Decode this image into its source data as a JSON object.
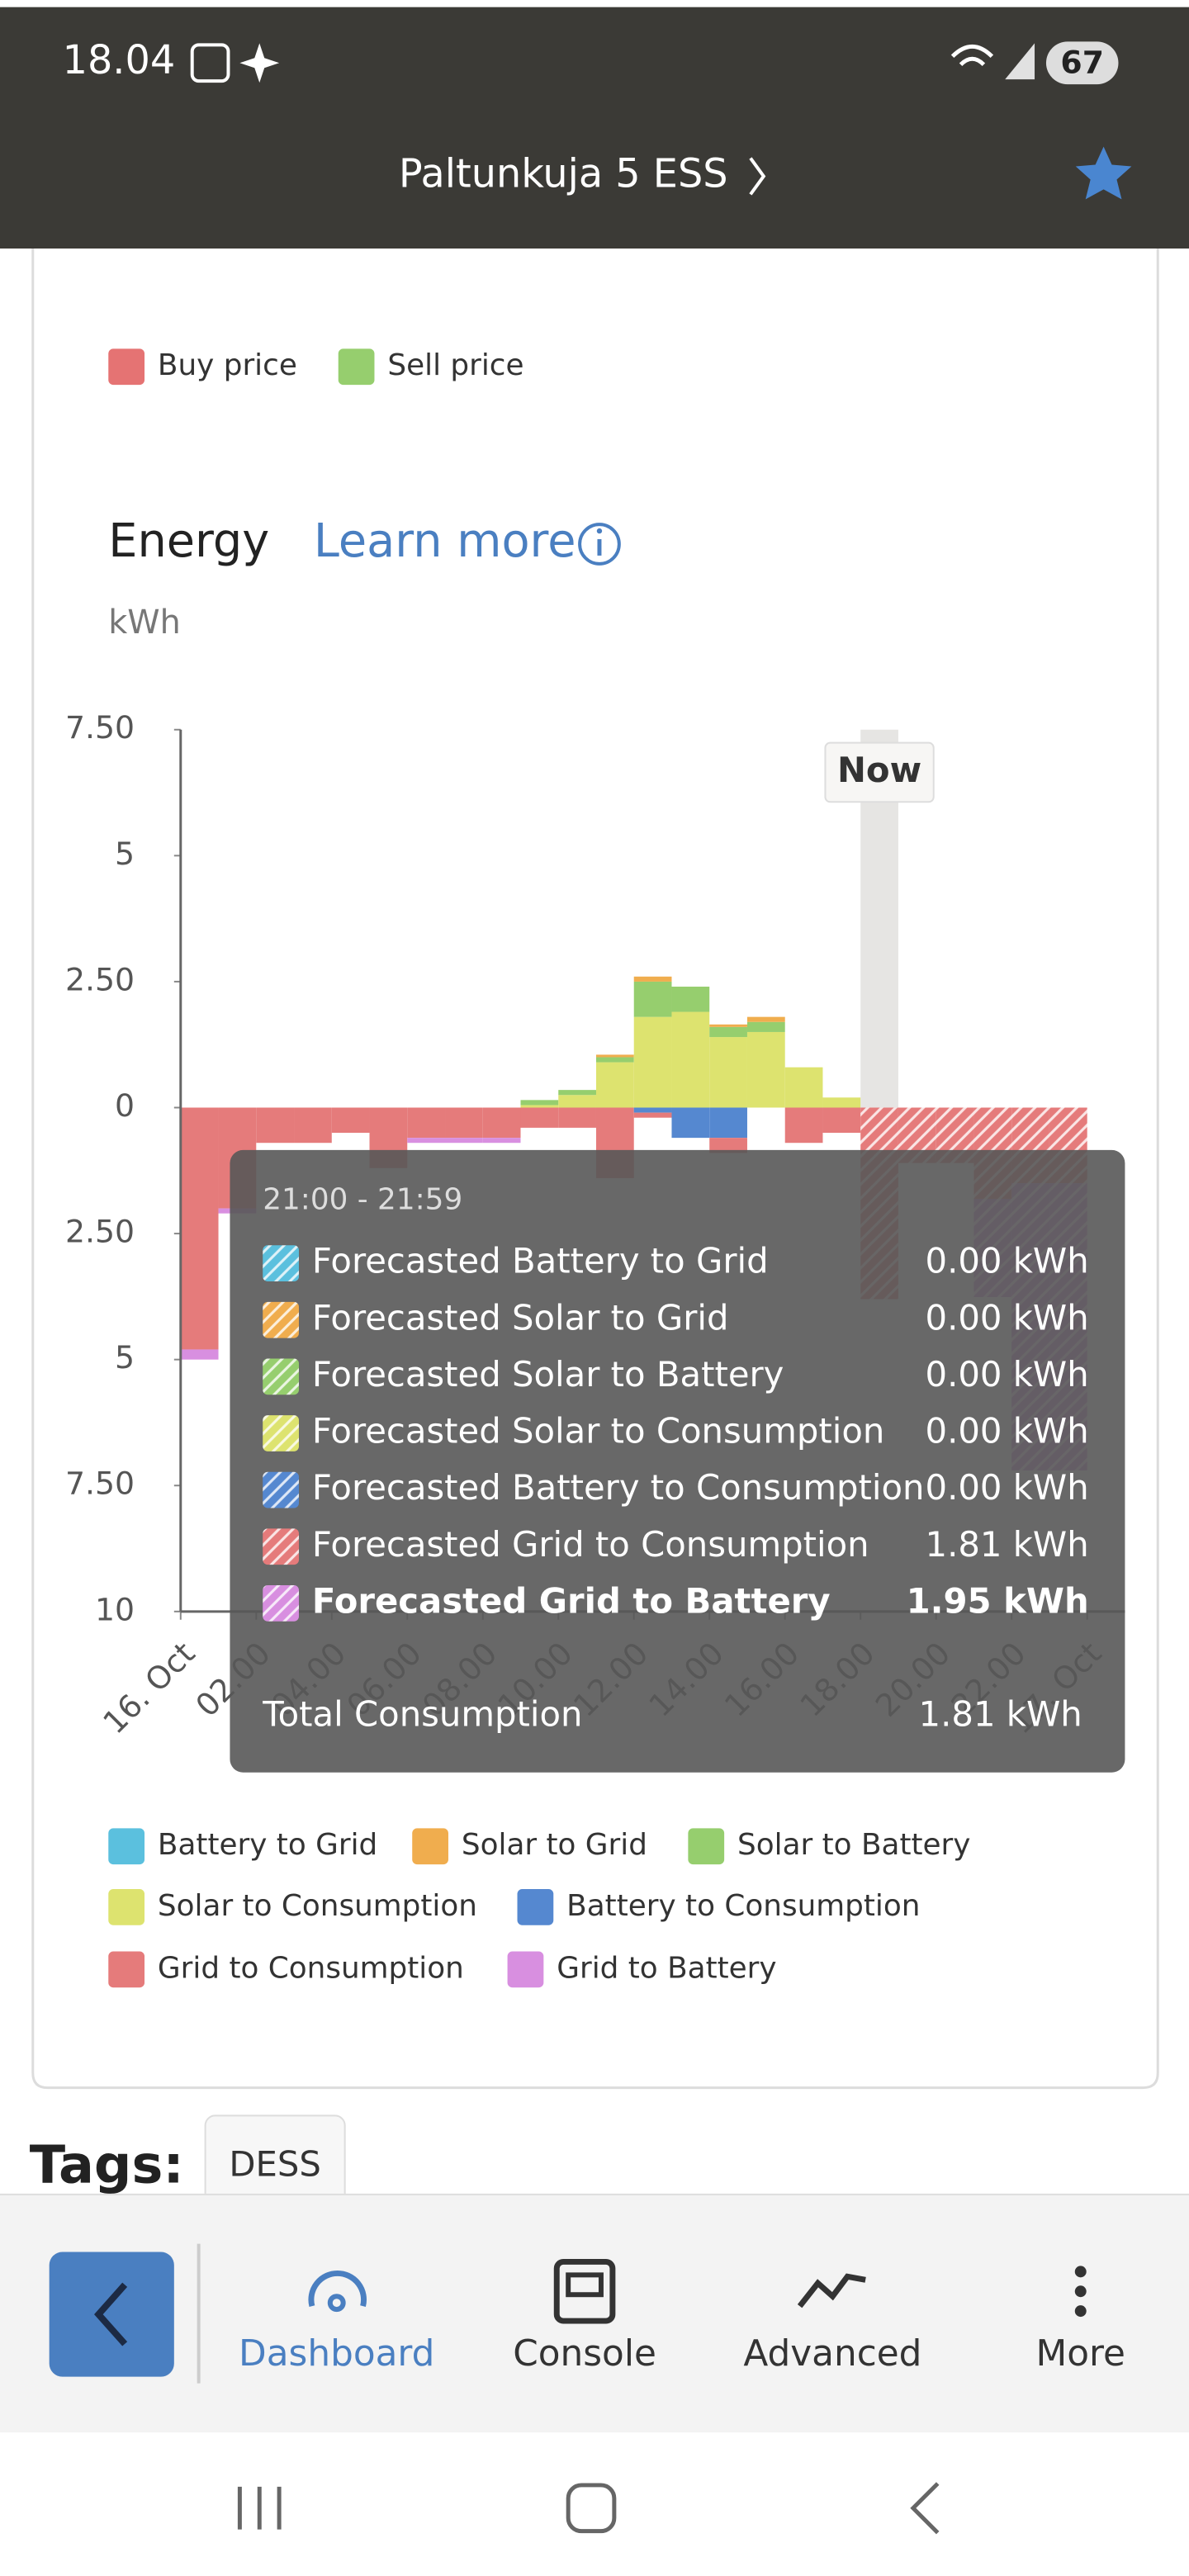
{
  "status_bar": {
    "time": "18.04",
    "battery": "67"
  },
  "header": {
    "title": "Paltunkuja 5 ESS"
  },
  "price_legend": [
    {
      "name": "Buy price",
      "color": "#e57373"
    },
    {
      "name": "Sell price",
      "color": "#96ce6e"
    }
  ],
  "learn_more": "Learn more",
  "chart_data": {
    "type": "bar",
    "stacked": true,
    "title": "Energy",
    "y_label": "kWh",
    "x": [
      0,
      1,
      2,
      3,
      4,
      5,
      6,
      7,
      8,
      9,
      10,
      11,
      12,
      13,
      14,
      15,
      16,
      17,
      18,
      19,
      20,
      21,
      22,
      23
    ],
    "xlim": [
      0,
      24
    ],
    "xticks": [
      {
        "value": 0,
        "label": "16. Oct"
      },
      {
        "value": 2,
        "label": "02.00"
      },
      {
        "value": 4,
        "label": "04.00"
      },
      {
        "value": 6,
        "label": "06.00"
      },
      {
        "value": 8,
        "label": "08.00"
      },
      {
        "value": 10,
        "label": "10.00"
      },
      {
        "value": 12,
        "label": "12.00"
      },
      {
        "value": 14,
        "label": "14.00"
      },
      {
        "value": 16,
        "label": "16.00"
      },
      {
        "value": 18,
        "label": "18.00"
      },
      {
        "value": 20,
        "label": "20.00"
      },
      {
        "value": 22,
        "label": "22.00"
      },
      {
        "value": 24,
        "label": "17. Oct"
      }
    ],
    "ylim": [
      -10,
      7.5
    ],
    "yticks": [
      {
        "value": 7.5,
        "label": "7.50"
      },
      5,
      {
        "value": 2.5,
        "label": "2.50"
      },
      0,
      {
        "value": -2.5,
        "label": "2.50"
      },
      {
        "value": -5,
        "label": "5"
      },
      {
        "value": -7.5,
        "label": "7.50"
      },
      {
        "value": -10,
        "label": "10"
      }
    ],
    "now": {
      "x": 18,
      "label": "Now"
    },
    "series": [
      {
        "name": "Battery to Grid",
        "color": "#5bc0de",
        "values": [
          0,
          0,
          0,
          0,
          0,
          0,
          0,
          0,
          0,
          0,
          0,
          0,
          0,
          0,
          0,
          0,
          0,
          0,
          0,
          0,
          0,
          0,
          0,
          0
        ]
      },
      {
        "name": "Solar to Grid",
        "color": "#f0ad4e",
        "values": [
          0,
          0,
          0,
          0,
          0,
          0,
          0,
          0,
          0,
          0,
          0,
          0.05,
          0.1,
          0,
          0.05,
          0.1,
          0,
          0,
          0,
          0,
          0,
          0,
          0,
          0
        ]
      },
      {
        "name": "Solar to Battery",
        "color": "#96ce6e",
        "values": [
          0,
          0,
          0,
          0,
          0,
          0,
          0,
          0,
          0,
          0.1,
          0.1,
          0.1,
          0.7,
          0.5,
          0.2,
          0.2,
          0,
          0,
          0,
          0,
          0,
          0,
          0,
          0
        ]
      },
      {
        "name": "Solar to Consumption",
        "color": "#dde36f",
        "values": [
          0,
          0,
          0,
          0,
          0,
          0,
          0,
          0,
          0,
          0.05,
          0.25,
          0.9,
          1.8,
          1.9,
          1.4,
          1.5,
          0.8,
          0.2,
          0,
          0,
          0,
          0,
          0,
          0
        ]
      },
      {
        "name": "Battery to Consumption",
        "color": "#5588d0",
        "values": [
          0,
          0,
          0,
          0,
          0,
          0,
          0,
          0,
          0,
          0,
          0,
          0,
          -0.1,
          -0.6,
          -0.6,
          0,
          0,
          0,
          0,
          0,
          0,
          0,
          0,
          0
        ]
      },
      {
        "name": "Grid to Consumption",
        "color": "#e57b7b",
        "values": [
          -4.8,
          -2.0,
          -0.7,
          -0.7,
          -0.5,
          -1.2,
          -0.6,
          -0.6,
          -0.6,
          -0.4,
          -0.4,
          -1.4,
          -0.1,
          0,
          -0.3,
          0,
          -0.7,
          -0.5,
          -3.8,
          -1.1,
          -1.1,
          -1.81,
          -1.5,
          -1.5
        ]
      },
      {
        "name": "Grid to Battery",
        "color": "#d88fe0",
        "values": [
          -0.2,
          -0.1,
          0,
          0,
          0,
          0,
          -0.1,
          -0.1,
          -0.1,
          0,
          0,
          0,
          0,
          0,
          0,
          0,
          0,
          0,
          0,
          0,
          0,
          -1.95,
          -5.7,
          -5.7
        ]
      }
    ]
  },
  "tooltip": {
    "time": "21:00 - 21:59",
    "rows": [
      {
        "label": "Forecasted Battery to Grid",
        "value": "0.00 kWh"
      },
      {
        "label": "Forecasted Solar to Grid",
        "value": "0.00 kWh"
      },
      {
        "label": "Forecasted Solar to Battery",
        "value": "0.00 kWh"
      },
      {
        "label": "Forecasted Solar to Consumption",
        "value": "0.00 kWh"
      },
      {
        "label": "Forecasted Battery to Consumption",
        "value": "0.00 kWh"
      },
      {
        "label": "Forecasted Grid to Consumption",
        "value": "1.81 kWh"
      },
      {
        "label": "Forecasted Grid to Battery",
        "value": "1.95 kWh"
      }
    ],
    "total_label": "Total Consumption",
    "total_value": "1.81 kWh"
  },
  "tags": {
    "label": "Tags:",
    "items": [
      "DESS"
    ]
  },
  "nav": [
    "Dashboard",
    "Console",
    "Advanced",
    "More"
  ]
}
